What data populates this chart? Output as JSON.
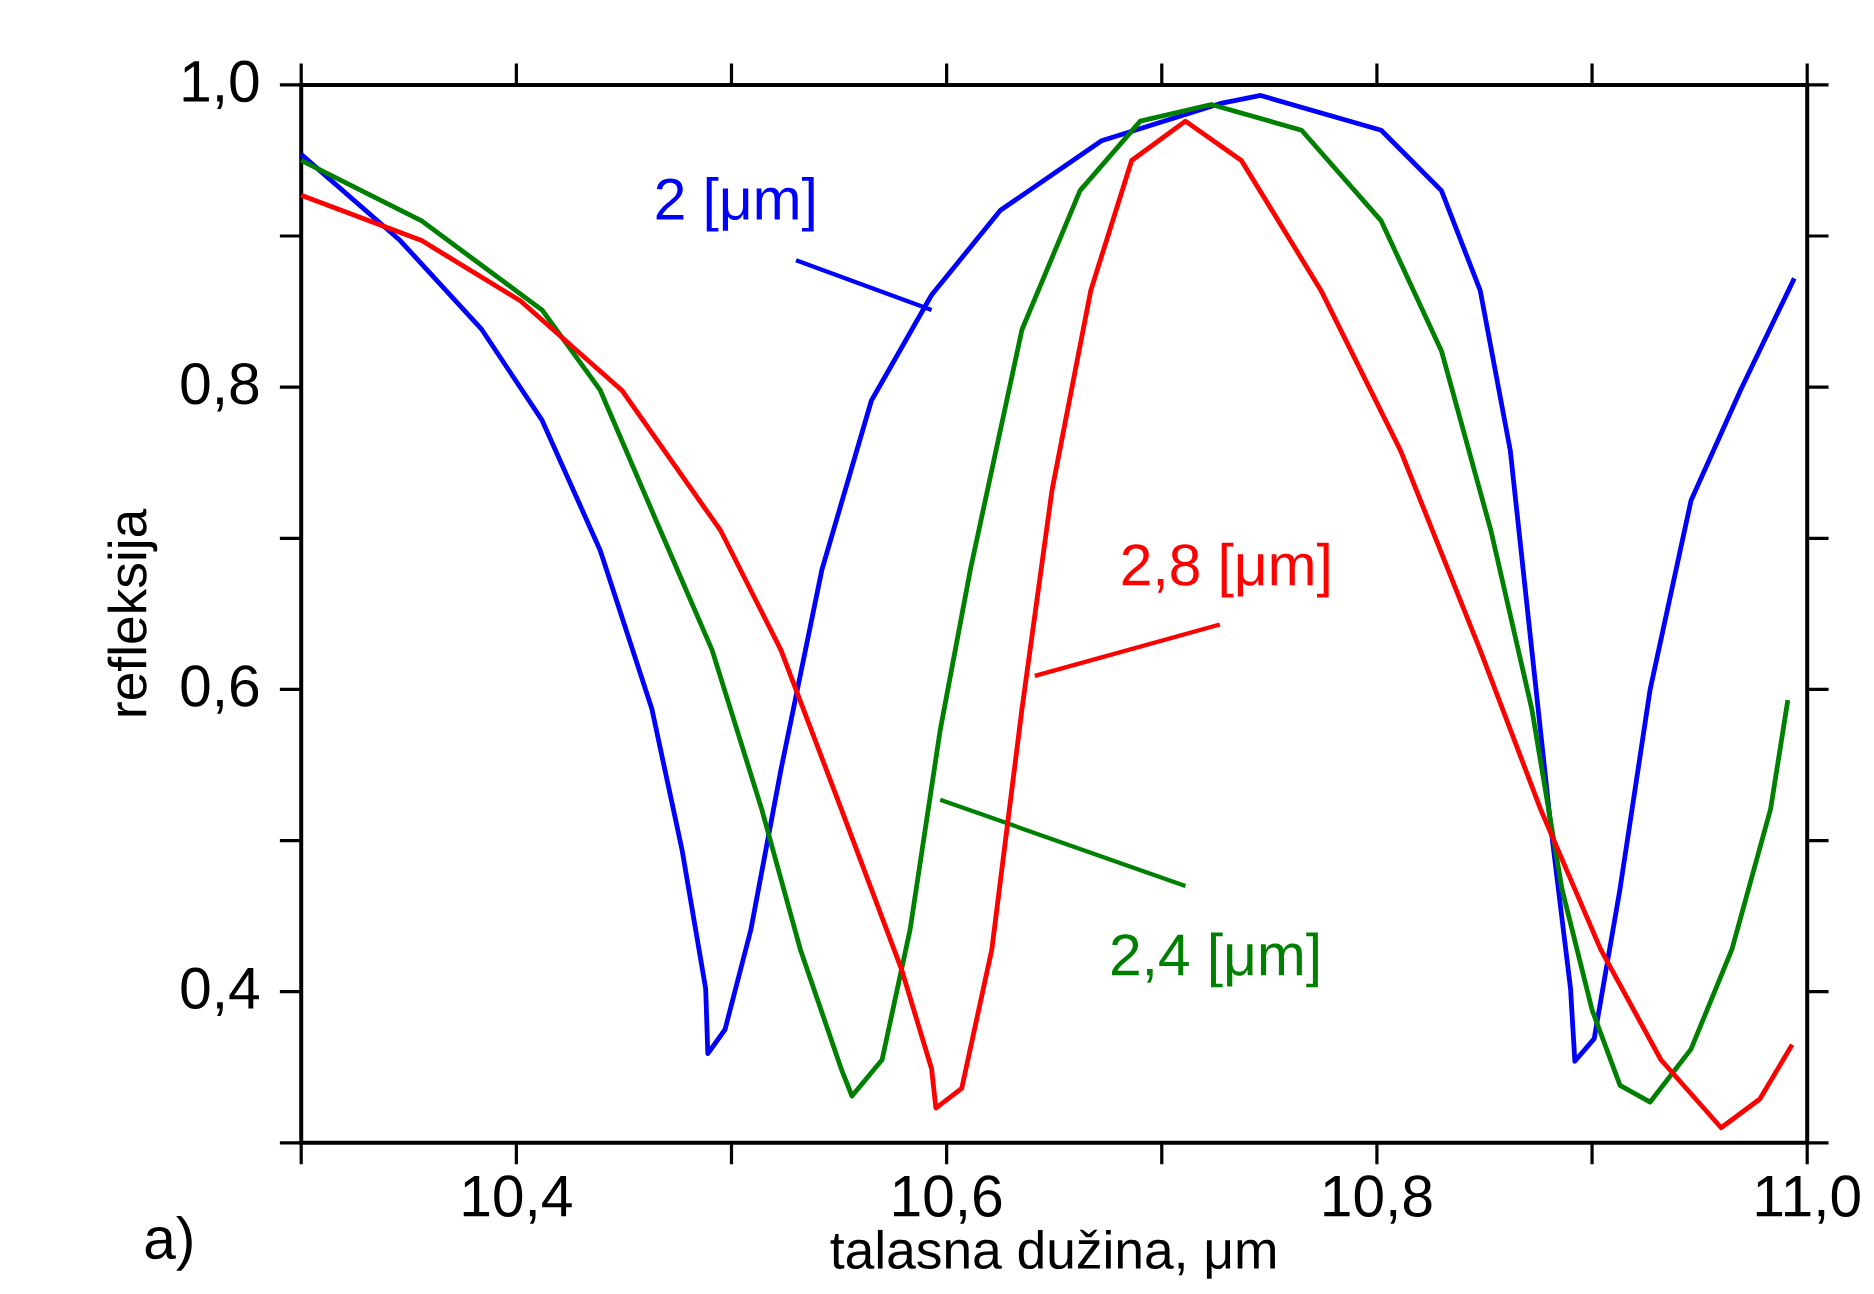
{
  "chart_data": {
    "type": "line",
    "xlabel": "talasna dužina, μm",
    "ylabel": "refleksija",
    "annotations": [
      "a)"
    ],
    "xlim": [
      10.3,
      11.0
    ],
    "ylim": [
      0.3,
      1.0
    ],
    "xticks": [
      {
        "value": 10.3,
        "label": null
      },
      {
        "value": 10.4,
        "label": "10,4"
      },
      {
        "value": 10.5,
        "label": null
      },
      {
        "value": 10.6,
        "label": "10,6"
      },
      {
        "value": 10.7,
        "label": null
      },
      {
        "value": 10.8,
        "label": "10,8"
      },
      {
        "value": 10.9,
        "label": null
      },
      {
        "value": 11.0,
        "label": "11,0"
      }
    ],
    "yticks": [
      {
        "value": 0.3,
        "label": null
      },
      {
        "value": 0.4,
        "label": "0,4"
      },
      {
        "value": 0.5,
        "label": null
      },
      {
        "value": 0.6,
        "label": "0,6"
      },
      {
        "value": 0.7,
        "label": null
      },
      {
        "value": 0.8,
        "label": "0,8"
      },
      {
        "value": 0.9,
        "label": null
      },
      {
        "value": 1.0,
        "label": "1,0"
      }
    ],
    "grid": false,
    "marker": "none",
    "line_style": "solid",
    "series": [
      {
        "name": "2 [μm]",
        "color": "#0000ff",
        "x": [
          10.3,
          10.346,
          10.384,
          10.412,
          10.439,
          10.463,
          10.477,
          10.488,
          10.489,
          10.497,
          10.509,
          10.523,
          10.542,
          10.565,
          10.593,
          10.625,
          10.672,
          10.728,
          10.746,
          10.802,
          10.83,
          10.848,
          10.862,
          10.872,
          10.881,
          10.89,
          10.892,
          10.901,
          10.913,
          10.927,
          10.946,
          10.969,
          10.994
        ],
        "values": [
          0.954,
          0.897,
          0.838,
          0.778,
          0.692,
          0.587,
          0.494,
          0.402,
          0.359,
          0.375,
          0.441,
          0.547,
          0.679,
          0.791,
          0.861,
          0.917,
          0.963,
          0.988,
          0.993,
          0.97,
          0.93,
          0.864,
          0.758,
          0.626,
          0.507,
          0.402,
          0.354,
          0.369,
          0.468,
          0.6,
          0.725,
          0.798,
          0.872
        ]
      },
      {
        "name": "2,4 [μm]",
        "color": "#008000",
        "x": [
          10.3,
          10.356,
          10.412,
          10.439,
          10.467,
          10.491,
          10.514,
          10.532,
          10.551,
          10.556,
          10.57,
          10.583,
          10.597,
          10.611,
          10.635,
          10.662,
          10.69,
          10.723,
          10.765,
          10.802,
          10.83,
          10.853,
          10.872,
          10.886,
          10.9,
          10.913,
          10.927,
          10.946,
          10.965,
          10.983,
          10.991
        ],
        "values": [
          0.95,
          0.91,
          0.851,
          0.798,
          0.705,
          0.626,
          0.521,
          0.428,
          0.349,
          0.331,
          0.355,
          0.441,
          0.573,
          0.679,
          0.838,
          0.93,
          0.976,
          0.987,
          0.97,
          0.91,
          0.824,
          0.705,
          0.587,
          0.468,
          0.388,
          0.338,
          0.327,
          0.362,
          0.428,
          0.521,
          0.593
        ]
      },
      {
        "name": "2,8 [μm]",
        "color": "#ff0000",
        "x": [
          10.3,
          10.356,
          10.402,
          10.449,
          10.495,
          10.523,
          10.551,
          10.579,
          10.593,
          10.595,
          10.607,
          10.621,
          10.635,
          10.649,
          10.667,
          10.686,
          10.711,
          10.737,
          10.774,
          10.811,
          10.848,
          10.876,
          10.904,
          10.932,
          10.96,
          10.978,
          10.993
        ],
        "values": [
          0.927,
          0.897,
          0.857,
          0.798,
          0.705,
          0.626,
          0.521,
          0.415,
          0.349,
          0.323,
          0.336,
          0.428,
          0.587,
          0.732,
          0.864,
          0.95,
          0.976,
          0.95,
          0.864,
          0.758,
          0.626,
          0.521,
          0.428,
          0.355,
          0.31,
          0.329,
          0.365
        ]
      }
    ]
  }
}
